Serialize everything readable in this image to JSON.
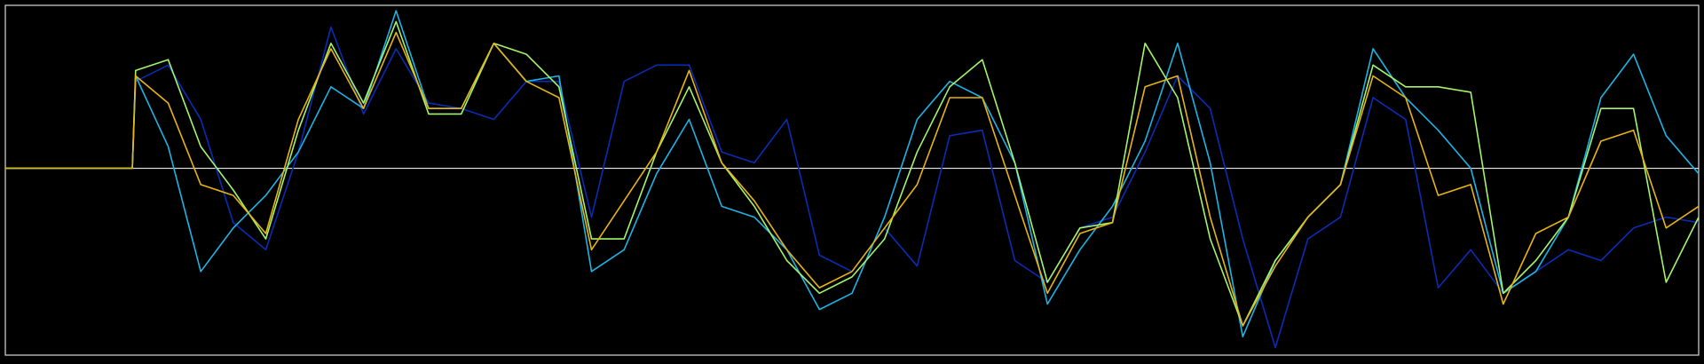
{
  "chart_data": {
    "type": "line",
    "x": [
      0,
      3.9,
      4,
      5,
      6,
      7,
      8,
      9,
      10,
      11,
      12,
      13,
      14,
      15,
      16,
      17,
      18,
      19,
      20,
      21,
      22,
      23,
      24,
      25,
      26,
      27,
      28,
      29,
      30,
      31,
      32,
      33,
      34,
      35,
      36,
      37,
      38,
      39,
      40,
      41,
      42,
      43,
      44,
      45,
      46,
      47,
      48,
      49,
      50,
      51,
      52
    ],
    "xlim": [
      0,
      52
    ],
    "ylim": [
      -172,
      150
    ],
    "series": [
      {
        "name": "navy",
        "color": "#0a2cb4",
        "values": [
          0,
          0,
          80,
          95,
          45,
          -50,
          -75,
          15,
          130,
          50,
          110,
          60,
          55,
          45,
          80,
          80,
          -45,
          80,
          95,
          95,
          15,
          5,
          45,
          -80,
          -95,
          -55,
          -90,
          30,
          35,
          -85,
          -105,
          -55,
          -45,
          15,
          85,
          55,
          -65,
          -165,
          -65,
          -45,
          65,
          45,
          -110,
          -75,
          -115,
          -95,
          -75,
          -85,
          -55,
          -45,
          -50
        ]
      },
      {
        "name": "cyan",
        "color": "#1cb4e4",
        "values": [
          0,
          0,
          85,
          20,
          -95,
          -55,
          -25,
          15,
          75,
          55,
          145,
          55,
          55,
          115,
          80,
          85,
          -95,
          -75,
          -5,
          45,
          -35,
          -45,
          -75,
          -130,
          -115,
          -45,
          45,
          80,
          65,
          5,
          -125,
          -75,
          -35,
          25,
          115,
          5,
          -155,
          -85,
          -45,
          -15,
          110,
          65,
          35,
          0,
          -115,
          -95,
          -45,
          65,
          105,
          30,
          -5
        ]
      },
      {
        "name": "green",
        "color": "#a4f46c",
        "values": [
          0,
          0,
          90,
          100,
          20,
          -20,
          -65,
          35,
          115,
          60,
          135,
          50,
          50,
          115,
          105,
          75,
          -65,
          -65,
          15,
          75,
          5,
          -35,
          -85,
          -115,
          -100,
          -65,
          15,
          75,
          100,
          5,
          -105,
          -55,
          -50,
          115,
          65,
          -65,
          -145,
          -85,
          -45,
          -15,
          95,
          75,
          75,
          70,
          -115,
          -85,
          -45,
          55,
          55,
          -105,
          -45
        ]
      },
      {
        "name": "gold",
        "color": "#e8b412",
        "values": [
          0,
          0,
          85,
          60,
          -15,
          -25,
          -60,
          45,
          110,
          55,
          125,
          55,
          55,
          115,
          80,
          65,
          -75,
          -30,
          15,
          90,
          5,
          -30,
          -75,
          -110,
          -95,
          -55,
          -15,
          65,
          65,
          -25,
          -115,
          -60,
          -50,
          75,
          85,
          -45,
          -145,
          -90,
          -45,
          -15,
          85,
          65,
          -25,
          -15,
          -125,
          -60,
          -45,
          25,
          35,
          -55,
          -35
        ]
      }
    ]
  }
}
